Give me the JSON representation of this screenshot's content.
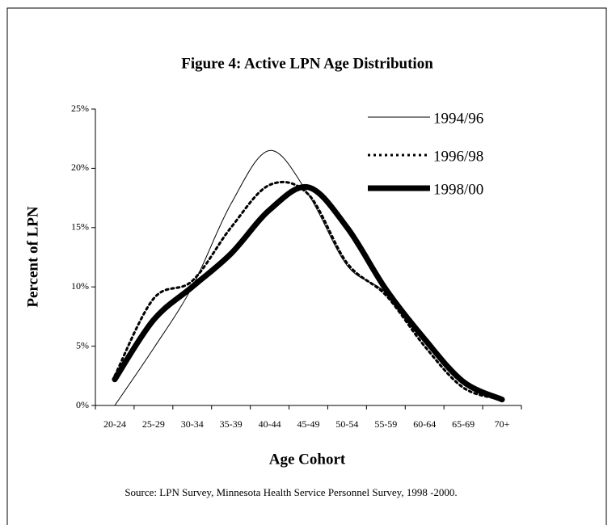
{
  "chart_data": {
    "type": "line",
    "title": "Figure 4: Active LPN Age Distribution",
    "x_label": "Age Cohort",
    "y_label": "Percent of LPN",
    "source": "Source: LPN Survey, Minnesota Health Service Personnel Survey, 1998 -2000.",
    "categories": [
      "20-24",
      "25-29",
      "30-34",
      "35-39",
      "40-44",
      "45-49",
      "50-54",
      "55-59",
      "60-64",
      "65-69",
      "70+"
    ],
    "series": [
      {
        "name": "1994/96",
        "color": "#000000",
        "line_width": 1,
        "dash": "none",
        "values": [
          0,
          4.8,
          10,
          17,
          21.5,
          17.8,
          11.8,
          9.5,
          5.3,
          1.8,
          0.7
        ]
      },
      {
        "name": "1996/98",
        "color": "#000000",
        "line_width": 3,
        "dash": "3 4",
        "values": [
          2.5,
          9,
          10.5,
          15,
          18.6,
          17.8,
          12,
          9.3,
          5,
          1.5,
          0.5
        ]
      },
      {
        "name": "1998/00",
        "color": "#000000",
        "line_width": 7,
        "dash": "none",
        "values": [
          2.2,
          7.2,
          10,
          12.8,
          16.5,
          18.4,
          15,
          9.8,
          5.6,
          2,
          0.5
        ]
      }
    ],
    "ylim": [
      0,
      25
    ],
    "yticks": [
      {
        "value": 0,
        "label": "0%"
      },
      {
        "value": 5,
        "label": "5%"
      },
      {
        "value": 10,
        "label": "10%"
      },
      {
        "value": 15,
        "label": "15%"
      },
      {
        "value": 20,
        "label": "20%"
      },
      {
        "value": 25,
        "label": "25%"
      }
    ],
    "grid": false,
    "legend": "top-right"
  }
}
